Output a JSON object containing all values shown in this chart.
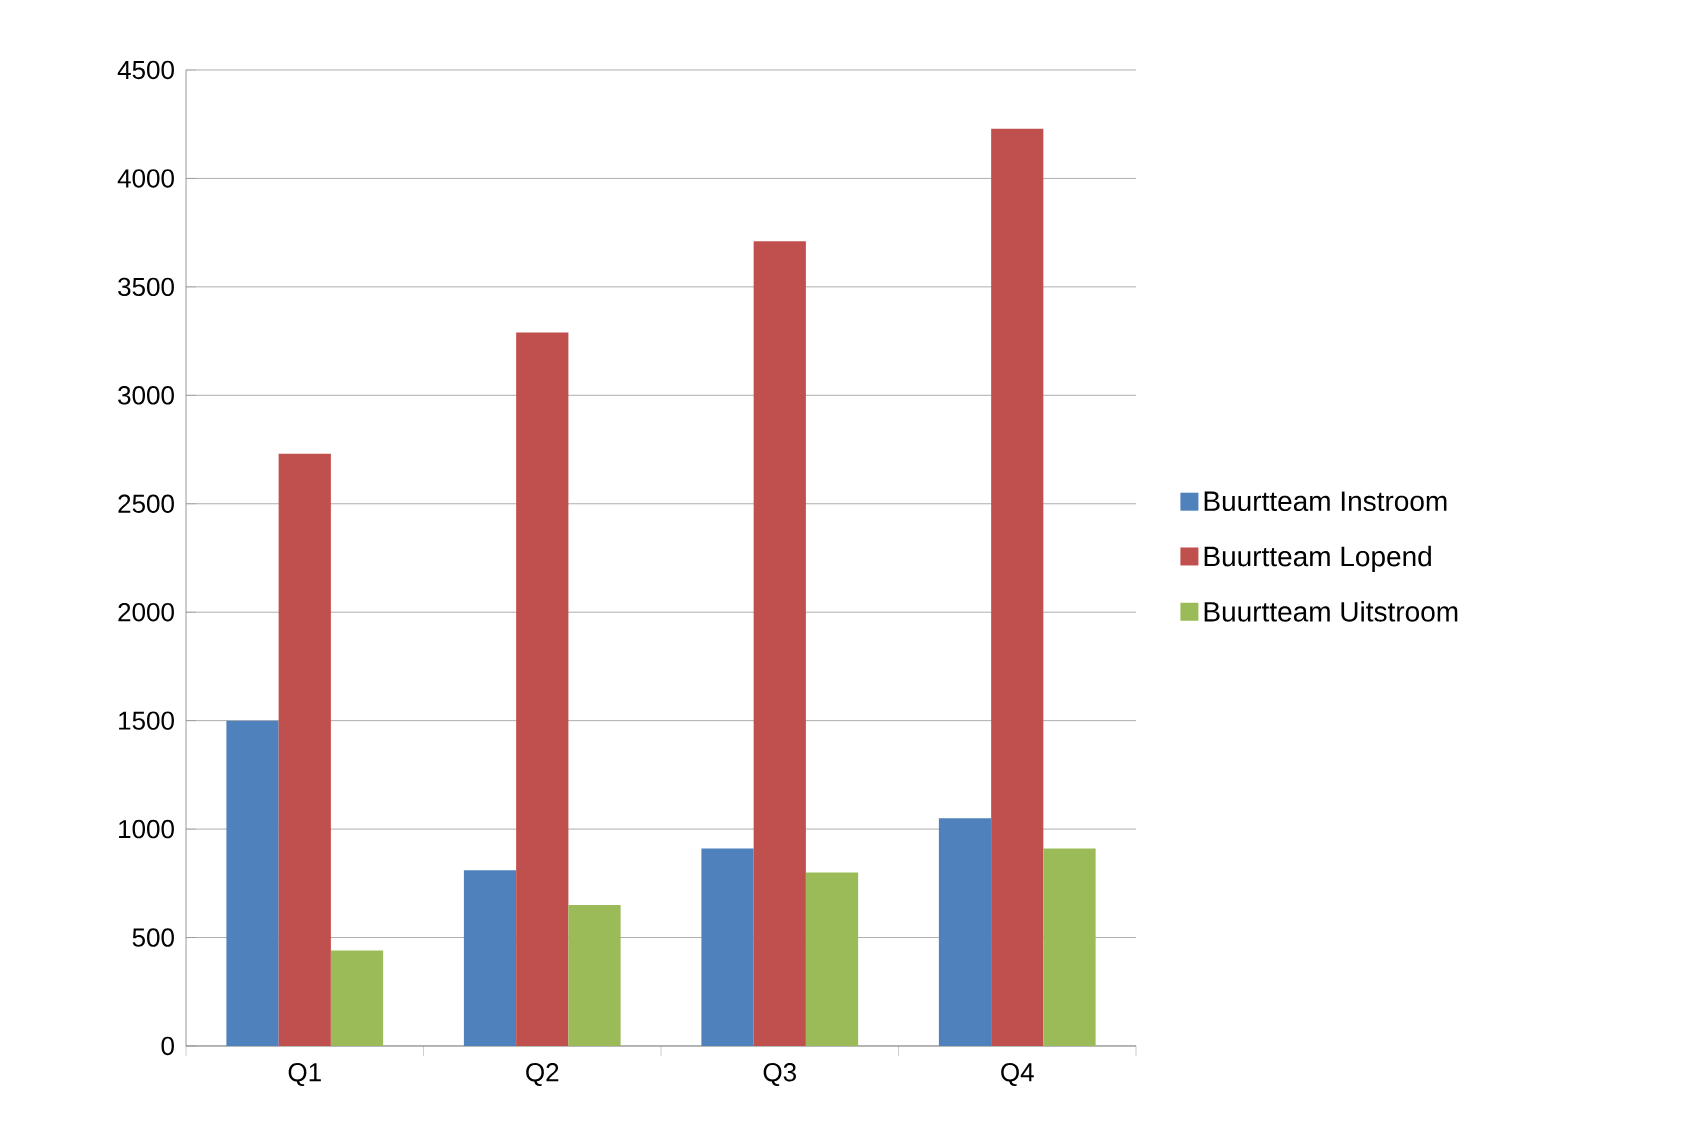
{
  "chart_data": {
    "type": "bar",
    "categories": [
      "Q1",
      "Q2",
      "Q3",
      "Q4"
    ],
    "series": [
      {
        "name": "Buurtteam Instroom",
        "color": "#4f81bd",
        "values": [
          1500,
          810,
          910,
          1050
        ]
      },
      {
        "name": "Buurtteam Lopend",
        "color": "#c0504d",
        "values": [
          2730,
          3290,
          3710,
          4230
        ]
      },
      {
        "name": "Buurtteam Uitstroom",
        "color": "#9bbb59",
        "values": [
          440,
          650,
          800,
          910
        ]
      }
    ],
    "ylim": [
      0,
      4500
    ],
    "yticks": [
      0,
      500,
      1000,
      1500,
      2000,
      2500,
      3000,
      3500,
      4000,
      4500
    ],
    "grid": "y",
    "legend": "right"
  }
}
